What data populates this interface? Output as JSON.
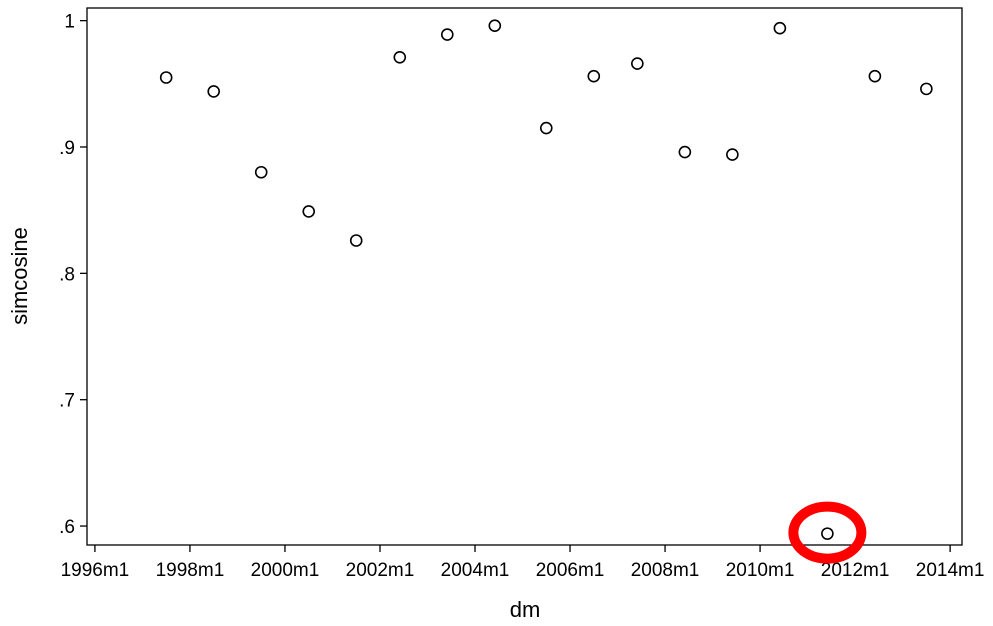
{
  "chart_data": {
    "type": "scatter",
    "xlabel": "dm",
    "ylabel": "simcosine",
    "x_ticks": [
      {
        "value": "1996m1",
        "label": "1996m1"
      },
      {
        "value": "1998m1",
        "label": "1998m1"
      },
      {
        "value": "2000m1",
        "label": "2000m1"
      },
      {
        "value": "2002m1",
        "label": "2002m1"
      },
      {
        "value": "2004m1",
        "label": "2004m1"
      },
      {
        "value": "2006m1",
        "label": "2006m1"
      },
      {
        "value": "2008m1",
        "label": "2008m1"
      },
      {
        "value": "2010m1",
        "label": "2010m1"
      },
      {
        "value": "2012m1",
        "label": "2012m1"
      },
      {
        "value": "2014m1",
        "label": "2014m1"
      }
    ],
    "y_ticks": [
      {
        "value": 0.6,
        "label": ".6"
      },
      {
        "value": 0.7,
        "label": ".7"
      },
      {
        "value": 0.8,
        "label": ".8"
      },
      {
        "value": 0.9,
        "label": ".9"
      },
      {
        "value": 1.0,
        "label": "1"
      }
    ],
    "xlim": [
      "1995m11",
      "2014m4"
    ],
    "ylim": [
      0.585,
      1.01
    ],
    "grid": false,
    "marker": "hollow-circle",
    "points": [
      {
        "x": "1997m7",
        "y": 0.955
      },
      {
        "x": "1998m7",
        "y": 0.944
      },
      {
        "x": "1999m7",
        "y": 0.88
      },
      {
        "x": "2000m7",
        "y": 0.849
      },
      {
        "x": "2001m7",
        "y": 0.826
      },
      {
        "x": "2002m6",
        "y": 0.971
      },
      {
        "x": "2003m6",
        "y": 0.989
      },
      {
        "x": "2004m6",
        "y": 0.996
      },
      {
        "x": "2005m7",
        "y": 0.915
      },
      {
        "x": "2006m7",
        "y": 0.956
      },
      {
        "x": "2007m6",
        "y": 0.966
      },
      {
        "x": "2008m6",
        "y": 0.896
      },
      {
        "x": "2009m6",
        "y": 0.894
      },
      {
        "x": "2010m6",
        "y": 0.994
      },
      {
        "x": "2011m6",
        "y": 0.594
      },
      {
        "x": "2012m6",
        "y": 0.956
      },
      {
        "x": "2013m7",
        "y": 0.946
      }
    ],
    "highlight": {
      "x": "2011m6",
      "y": 0.594,
      "shape": "ring",
      "color": "#ff0000"
    },
    "colors": {
      "marker": "#000000",
      "axis": "#000000",
      "highlight": "#ff0000",
      "background": "#ffffff"
    }
  }
}
